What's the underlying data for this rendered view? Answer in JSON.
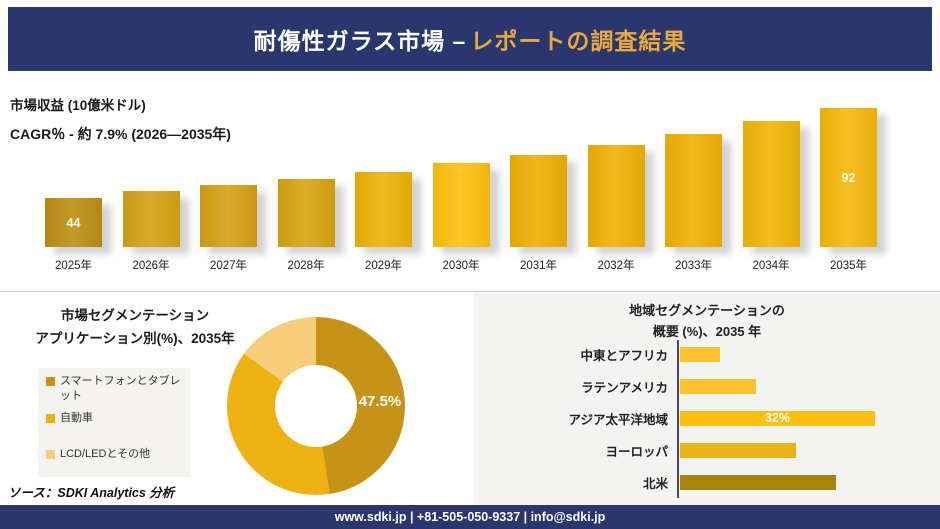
{
  "colors": {
    "navy": "#2A366E",
    "title_gold": "#E7A93B",
    "panel_gray": "#F3F3F2",
    "legend_gray": "#F4F3F0"
  },
  "header": {
    "title_white": "耐傷性ガラス市場 –",
    "title_gold": "レポートの調査結果"
  },
  "chart_data": [
    {
      "type": "bar",
      "title": "市場収益 (10億米ドル)",
      "subtitle": "CAGR％ - 約 7.9% (2026―2035年)",
      "categories": [
        "2025年",
        "2026年",
        "2027年",
        "2028年",
        "2029年",
        "2030年",
        "2031年",
        "2032年",
        "2033年",
        "2034年",
        "2035年"
      ],
      "values": [
        44,
        48,
        51,
        54.5,
        58,
        63,
        67,
        72.5,
        78,
        85,
        92
      ],
      "data_labels": [
        "44",
        "",
        "",
        "",
        "",
        "",
        "",
        "",
        "",
        "",
        "92"
      ],
      "bar_colors": [
        "#BD8E13",
        "#D5A213",
        "#D4A013",
        "#D7A410",
        "#EDB207",
        "#FDC00C",
        "#EFAF03",
        "#F0B004",
        "#F0B104",
        "#F2B406",
        "#F5B70A"
      ],
      "xlabel": "",
      "ylabel": "10億米ドル",
      "legend_position": "none",
      "grid": false
    },
    {
      "type": "pie",
      "title_lines": [
        "市場セグメンテーション",
        "アプリケーション別(%)、2035年"
      ],
      "slices": [
        {
          "label": "スマートフォンとタブレット",
          "value": 47.5,
          "color": "#C79317",
          "data_label": "47.5%"
        },
        {
          "label": "自動車",
          "value": 37.5,
          "color": "#EDB112",
          "data_label": ""
        },
        {
          "label": "LCD/LEDとその他",
          "value": 15,
          "color": "#F8CD79",
          "data_label": ""
        }
      ],
      "donut": true,
      "start_angle_deg": 0,
      "legend_position": "left",
      "source": "ソース：SDKI Analytics 分析"
    },
    {
      "type": "bar",
      "orientation": "horizontal",
      "title_lines": [
        "地域セグメンテーションの",
        "概要 (%)、2035 年"
      ],
      "categories": [
        "中東とアフリカ",
        "ラテンアメリカ",
        "アジア太平洋地域",
        "ヨーロッパ",
        "北米"
      ],
      "values": [
        6.5,
        12.5,
        32,
        19,
        25.5
      ],
      "data_labels": [
        "",
        "",
        "32%",
        "",
        ""
      ],
      "bar_colors": [
        "#FDC32C",
        "#FDC32C",
        "#FDC00C",
        "#E8B418",
        "#A9840D"
      ],
      "grid": false
    }
  ],
  "footer": {
    "text": "www.sdki.jp | +81-505-050-9337 | info@sdki.jp"
  }
}
